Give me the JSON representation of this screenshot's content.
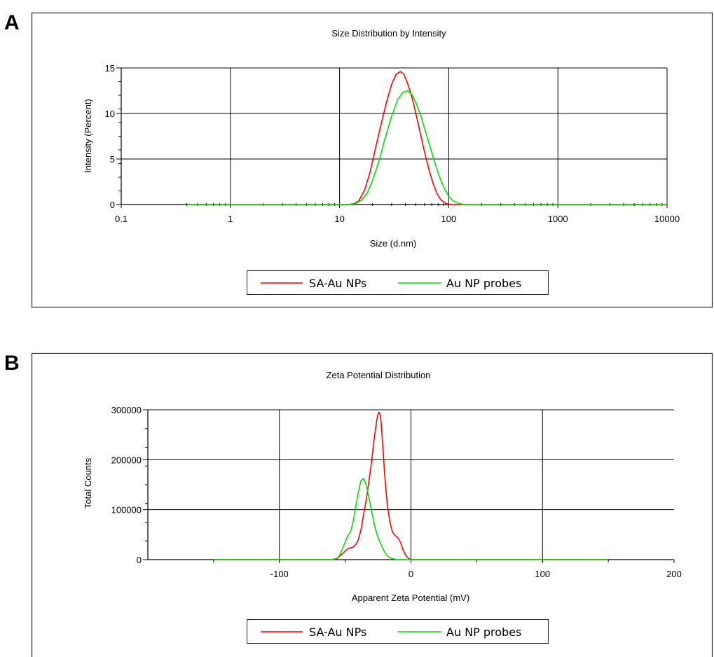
{
  "panels": [
    {
      "letter": "A"
    },
    {
      "letter": "B"
    }
  ],
  "chart_data": [
    {
      "type": "line",
      "title": "Size Distribution by Intensity",
      "xlabel": "Size (d.nm)",
      "ylabel": "Intensity (Percent)",
      "xscale": "log",
      "xlim": [
        0.1,
        10000
      ],
      "ylim": [
        0,
        15
      ],
      "xticks": [
        "0.1",
        "1",
        "10",
        "100",
        "1000",
        "10000"
      ],
      "xtick_values": [
        0.1,
        1,
        10,
        100,
        1000,
        10000
      ],
      "yticks": [
        "0",
        "5",
        "10",
        "15"
      ],
      "ytick_values": [
        0,
        5,
        10,
        15
      ],
      "grid": true,
      "legend_position": "bottom",
      "series": [
        {
          "name": "SA-Au NPs",
          "color": "#ff0000",
          "x": [
            0.4,
            1,
            5,
            12,
            13.5,
            15,
            17,
            19,
            21,
            24,
            27,
            30,
            33,
            36,
            39,
            42,
            46,
            50,
            55,
            60,
            66,
            72,
            78,
            85,
            95,
            105,
            150,
            1000,
            10000
          ],
          "y": [
            0,
            0,
            0,
            0,
            0.1,
            0.4,
            1.6,
            3.5,
            5.8,
            8.8,
            11.3,
            13.2,
            14.3,
            14.6,
            14.3,
            13.3,
            11.8,
            10.0,
            7.8,
            5.8,
            3.8,
            2.3,
            1.2,
            0.5,
            0.1,
            0,
            0,
            0,
            0
          ]
        },
        {
          "name": "Au NP probes",
          "color": "#00e000",
          "x": [
            0.4,
            1,
            5,
            12,
            14,
            16,
            18,
            20,
            23,
            26,
            30,
            34,
            38,
            42,
            46,
            50,
            56,
            62,
            68,
            75,
            82,
            90,
            100,
            110,
            125,
            140,
            160,
            1000,
            10000
          ],
          "y": [
            0,
            0,
            0,
            0,
            0.1,
            0.5,
            1.3,
            2.6,
            4.8,
            7.2,
            9.7,
            11.5,
            12.3,
            12.5,
            12.1,
            11.2,
            9.6,
            7.8,
            6.2,
            4.5,
            3.1,
            1.9,
            0.9,
            0.4,
            0.1,
            0,
            0,
            0,
            0
          ]
        }
      ]
    },
    {
      "type": "line",
      "title": "Zeta Potential Distribution",
      "xlabel": "Apparent Zeta Potential (mV)",
      "ylabel": "Total Counts",
      "xlim": [
        -200,
        200
      ],
      "ylim": [
        0,
        300000
      ],
      "xticks": [
        "-100",
        "0",
        "100",
        "200"
      ],
      "xtick_values": [
        -100,
        0,
        100,
        200
      ],
      "yticks": [
        "0",
        "100000",
        "200000",
        "300000"
      ],
      "ytick_values": [
        0,
        100000,
        200000,
        300000
      ],
      "grid": true,
      "legend_position": "bottom",
      "series": [
        {
          "name": "SA-Au NPs",
          "color": "#ff0000",
          "x": [
            -150,
            -60,
            -56,
            -52,
            -48,
            -44,
            -42,
            -40,
            -38,
            -36,
            -34,
            -32,
            -30,
            -28,
            -26,
            -25,
            -24,
            -23,
            -22,
            -21,
            -20,
            -18,
            -16,
            -14,
            -12,
            -10,
            -8,
            -6,
            -4,
            -2,
            0,
            10,
            150
          ],
          "y": [
            0,
            0,
            3000,
            12000,
            22000,
            25000,
            30000,
            40000,
            60000,
            90000,
            120000,
            155000,
            195000,
            240000,
            280000,
            292000,
            295000,
            285000,
            250000,
            210000,
            170000,
            110000,
            75000,
            55000,
            48000,
            44000,
            35000,
            20000,
            9000,
            3000,
            0,
            0,
            0
          ]
        },
        {
          "name": "Au NP probes",
          "color": "#00e000",
          "x": [
            -150,
            -60,
            -56,
            -54,
            -52,
            -50,
            -48,
            -46,
            -44,
            -42,
            -40,
            -38,
            -36,
            -34,
            -32,
            -30,
            -28,
            -26,
            -24,
            -22,
            -20,
            -18,
            -16,
            -14,
            -12,
            -10,
            -8,
            150
          ],
          "y": [
            0,
            0,
            2000,
            10000,
            22000,
            35000,
            48000,
            55000,
            75000,
            105000,
            135000,
            158000,
            162000,
            150000,
            125000,
            98000,
            72000,
            52000,
            38000,
            26000,
            15000,
            8000,
            4000,
            2000,
            800,
            300,
            0,
            0
          ]
        }
      ]
    }
  ]
}
